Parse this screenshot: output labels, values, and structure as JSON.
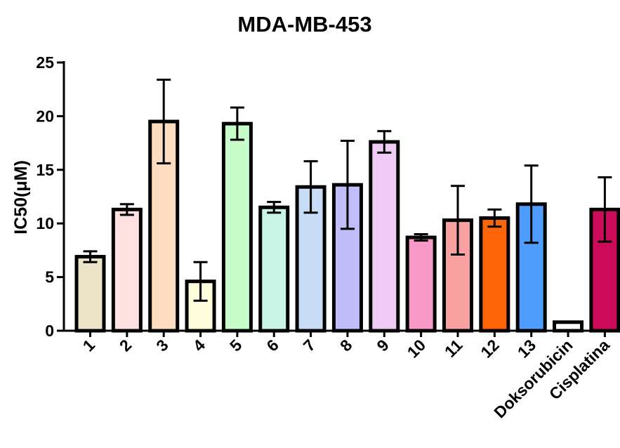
{
  "chart_data": {
    "type": "bar",
    "title": "MDA-MB-453",
    "xlabel": "",
    "ylabel": "IC50(μM)",
    "ylim": [
      0,
      25
    ],
    "yticks": [
      0,
      5,
      10,
      15,
      20,
      25
    ],
    "grid": false,
    "categories": [
      "1",
      "2",
      "3",
      "4",
      "5",
      "6",
      "7",
      "8",
      "9",
      "10",
      "11",
      "12",
      "13",
      "Doksorubicin",
      "Cisplatina"
    ],
    "values": [
      6.9,
      11.3,
      19.5,
      4.6,
      19.3,
      11.5,
      13.4,
      13.6,
      17.6,
      8.7,
      10.3,
      10.5,
      11.8,
      0.8,
      11.3
    ],
    "errors": [
      0.5,
      0.5,
      3.9,
      1.8,
      1.5,
      0.5,
      2.4,
      4.1,
      1.0,
      0.3,
      3.2,
      0.8,
      3.6,
      0.05,
      3.0
    ],
    "colors": [
      "#ece3c9",
      "#fde0e0",
      "#fddcbf",
      "#fefedb",
      "#c6fdc8",
      "#c9f5e6",
      "#c9dcf6",
      "#c0befa",
      "#efcbf5",
      "#f79ac7",
      "#f9a0a0",
      "#fd6508",
      "#4f9dff",
      "#ffffff",
      "#cc0a5a"
    ]
  }
}
